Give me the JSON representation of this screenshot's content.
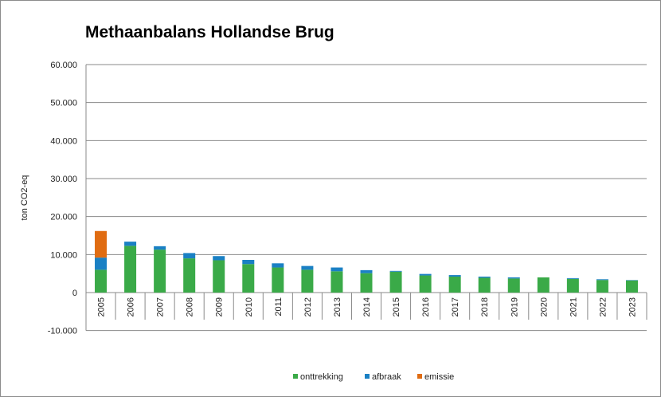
{
  "chart_data": {
    "type": "bar",
    "stacked": true,
    "title": "Methaanbalans Hollandse Brug",
    "ylabel": "ton CO2-eq",
    "xlabel": "",
    "ylim": [
      -10000,
      60000
    ],
    "yticks": [
      60000,
      50000,
      40000,
      30000,
      20000,
      10000,
      0,
      -10000
    ],
    "ytick_labels": [
      "60.000",
      "50.000",
      "40.000",
      "30.000",
      "20.000",
      "10.000",
      "0",
      "-10.000"
    ],
    "grid": true,
    "legend_position": "bottom",
    "categories": [
      "2005",
      "2006",
      "2007",
      "2008",
      "2009",
      "2010",
      "2011",
      "2012",
      "2013",
      "2014",
      "2015",
      "2016",
      "2017",
      "2018",
      "2019",
      "2020",
      "2021",
      "2022",
      "2023"
    ],
    "series": [
      {
        "name": "onttrekking",
        "color": "#3aaa48",
        "values": [
          6000,
          12300,
          11300,
          9000,
          8500,
          7500,
          6600,
          6000,
          5600,
          5100,
          5500,
          4500,
          4200,
          3900,
          3700,
          4000,
          3600,
          3300,
          3200
        ]
      },
      {
        "name": "afbraak",
        "color": "#1a80c4",
        "values": [
          3200,
          1100,
          900,
          1400,
          1100,
          1100,
          1100,
          1000,
          1000,
          800,
          200,
          400,
          400,
          300,
          300,
          0,
          200,
          200,
          100
        ]
      },
      {
        "name": "emissie",
        "color": "#e06c12",
        "values": [
          7000,
          0,
          0,
          0,
          0,
          0,
          0,
          0,
          0,
          0,
          0,
          0,
          0,
          0,
          0,
          0,
          0,
          0,
          0
        ]
      }
    ]
  }
}
